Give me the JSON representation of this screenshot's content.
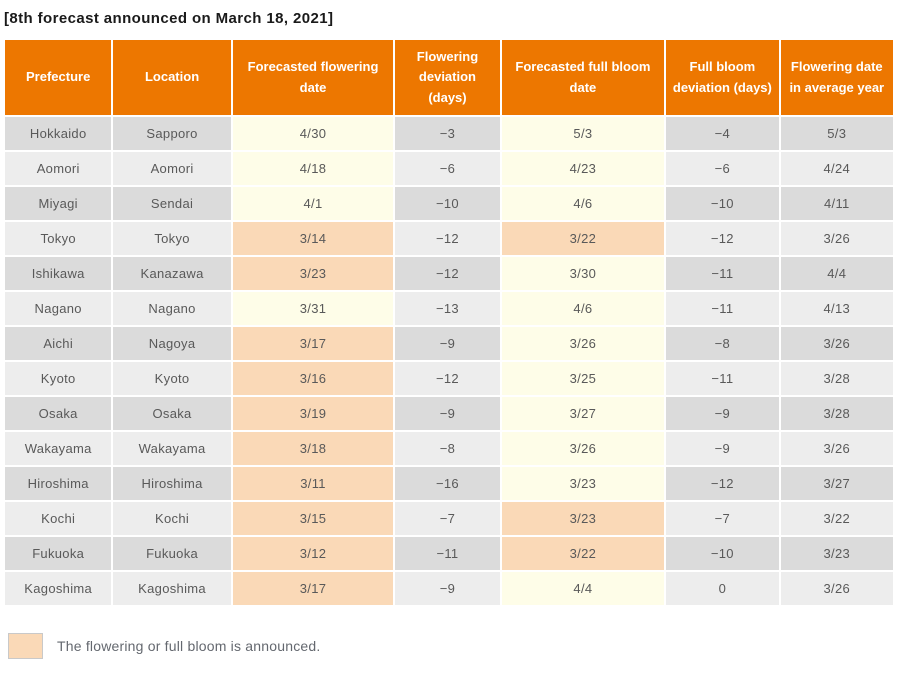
{
  "title": "[8th forecast announced on March 18, 2021]",
  "colors": {
    "header_bg": "#ED7700",
    "header_text": "#FFFFFF",
    "announced_bg": "#FAD9B7",
    "forecast_bg": "#FEFDE8",
    "row_dark_bg": "#DBDBDB",
    "row_light_bg": "#EDEDED",
    "cell_text": "#595959",
    "legend_text": "#64686F"
  },
  "chart_data": {
    "type": "table",
    "title": "[8th forecast announced on March 18, 2021]",
    "columns": [
      "Prefecture",
      "Location",
      "Forecasted flowering date",
      "Flowering deviation (days)",
      "Forecasted full bloom date",
      "Full bloom deviation (days)",
      "Flowering date in average year"
    ],
    "rows": [
      {
        "prefecture": "Hokkaido",
        "location": "Sapporo",
        "flowering_date": "4/30",
        "flowering_announced": false,
        "flowering_deviation": "−3",
        "full_bloom_date": "5/3",
        "full_bloom_announced": false,
        "full_bloom_deviation": "−4",
        "average_year": "5/3"
      },
      {
        "prefecture": "Aomori",
        "location": "Aomori",
        "flowering_date": "4/18",
        "flowering_announced": false,
        "flowering_deviation": "−6",
        "full_bloom_date": "4/23",
        "full_bloom_announced": false,
        "full_bloom_deviation": "−6",
        "average_year": "4/24"
      },
      {
        "prefecture": "Miyagi",
        "location": "Sendai",
        "flowering_date": "4/1",
        "flowering_announced": false,
        "flowering_deviation": "−10",
        "full_bloom_date": "4/6",
        "full_bloom_announced": false,
        "full_bloom_deviation": "−10",
        "average_year": "4/11"
      },
      {
        "prefecture": "Tokyo",
        "location": "Tokyo",
        "flowering_date": "3/14",
        "flowering_announced": true,
        "flowering_deviation": "−12",
        "full_bloom_date": "3/22",
        "full_bloom_announced": true,
        "full_bloom_deviation": "−12",
        "average_year": "3/26"
      },
      {
        "prefecture": "Ishikawa",
        "location": "Kanazawa",
        "flowering_date": "3/23",
        "flowering_announced": true,
        "flowering_deviation": "−12",
        "full_bloom_date": "3/30",
        "full_bloom_announced": false,
        "full_bloom_deviation": "−11",
        "average_year": "4/4"
      },
      {
        "prefecture": "Nagano",
        "location": "Nagano",
        "flowering_date": "3/31",
        "flowering_announced": false,
        "flowering_deviation": "−13",
        "full_bloom_date": "4/6",
        "full_bloom_announced": false,
        "full_bloom_deviation": "−11",
        "average_year": "4/13"
      },
      {
        "prefecture": "Aichi",
        "location": "Nagoya",
        "flowering_date": "3/17",
        "flowering_announced": true,
        "flowering_deviation": "−9",
        "full_bloom_date": "3/26",
        "full_bloom_announced": false,
        "full_bloom_deviation": "−8",
        "average_year": "3/26"
      },
      {
        "prefecture": "Kyoto",
        "location": "Kyoto",
        "flowering_date": "3/16",
        "flowering_announced": true,
        "flowering_deviation": "−12",
        "full_bloom_date": "3/25",
        "full_bloom_announced": false,
        "full_bloom_deviation": "−11",
        "average_year": "3/28"
      },
      {
        "prefecture": "Osaka",
        "location": "Osaka",
        "flowering_date": "3/19",
        "flowering_announced": true,
        "flowering_deviation": "−9",
        "full_bloom_date": "3/27",
        "full_bloom_announced": false,
        "full_bloom_deviation": "−9",
        "average_year": "3/28"
      },
      {
        "prefecture": "Wakayama",
        "location": "Wakayama",
        "flowering_date": "3/18",
        "flowering_announced": true,
        "flowering_deviation": "−8",
        "full_bloom_date": "3/26",
        "full_bloom_announced": false,
        "full_bloom_deviation": "−9",
        "average_year": "3/26"
      },
      {
        "prefecture": "Hiroshima",
        "location": "Hiroshima",
        "flowering_date": "3/11",
        "flowering_announced": true,
        "flowering_deviation": "−16",
        "full_bloom_date": "3/23",
        "full_bloom_announced": false,
        "full_bloom_deviation": "−12",
        "average_year": "3/27"
      },
      {
        "prefecture": "Kochi",
        "location": "Kochi",
        "flowering_date": "3/15",
        "flowering_announced": true,
        "flowering_deviation": "−7",
        "full_bloom_date": "3/23",
        "full_bloom_announced": true,
        "full_bloom_deviation": "−7",
        "average_year": "3/22"
      },
      {
        "prefecture": "Fukuoka",
        "location": "Fukuoka",
        "flowering_date": "3/12",
        "flowering_announced": true,
        "flowering_deviation": "−11",
        "full_bloom_date": "3/22",
        "full_bloom_announced": true,
        "full_bloom_deviation": "−10",
        "average_year": "3/23"
      },
      {
        "prefecture": "Kagoshima",
        "location": "Kagoshima",
        "flowering_date": "3/17",
        "flowering_announced": true,
        "flowering_deviation": "−9",
        "full_bloom_date": "4/4",
        "full_bloom_announced": false,
        "full_bloom_deviation": "0",
        "average_year": "3/26"
      }
    ],
    "legend": "The flowering or full bloom is announced."
  }
}
